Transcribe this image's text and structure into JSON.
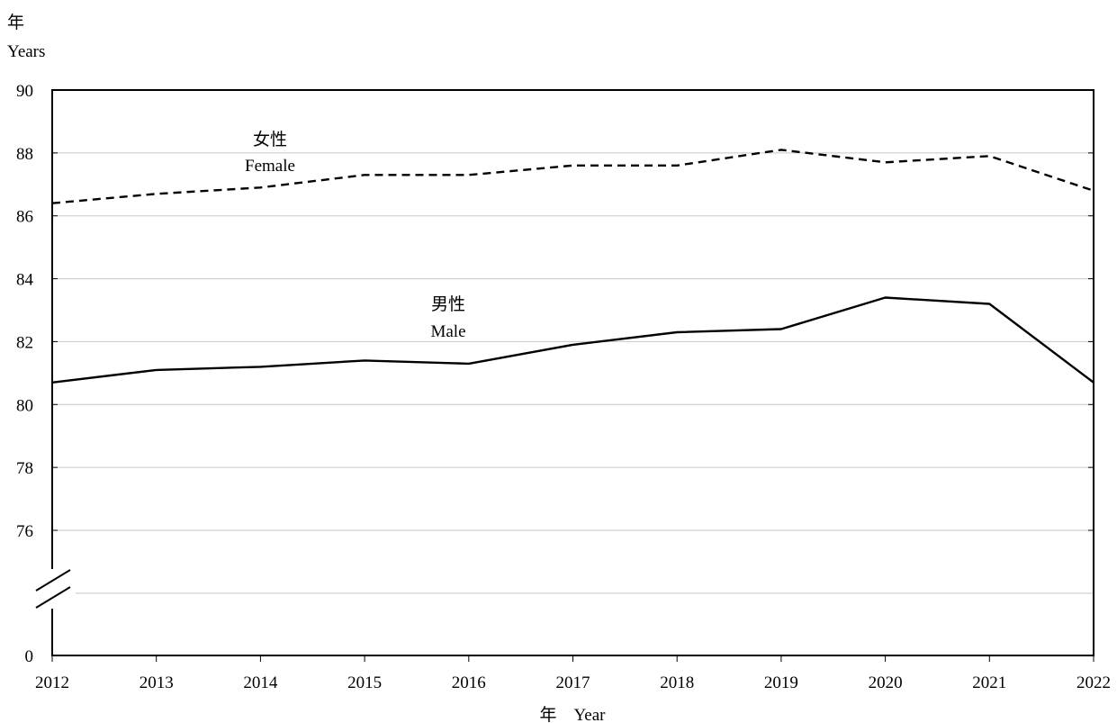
{
  "chart_data": {
    "type": "line",
    "title": "",
    "ylabel_zh": "年",
    "ylabel_en": "Years",
    "xlabel": "年　Year",
    "x": [
      "2012",
      "2013",
      "2014",
      "2015",
      "2016",
      "2017",
      "2018",
      "2019",
      "2020",
      "2021",
      "2022"
    ],
    "ylim": [
      76,
      90
    ],
    "y_axis_break": true,
    "y_ticks": [
      "90",
      "88",
      "86",
      "84",
      "82",
      "80",
      "78",
      "76",
      "0"
    ],
    "grid": true,
    "series": [
      {
        "name_zh": "女性",
        "name_en": "Female",
        "line_style": "dashed",
        "color": "#000000",
        "values": [
          86.4,
          86.7,
          86.9,
          87.3,
          87.3,
          87.6,
          87.6,
          88.1,
          87.7,
          87.9,
          86.8
        ]
      },
      {
        "name_zh": "男性",
        "name_en": "Male",
        "line_style": "solid",
        "color": "#000000",
        "values": [
          80.7,
          81.1,
          81.2,
          81.4,
          81.3,
          81.9,
          82.3,
          82.4,
          83.4,
          83.2,
          80.7
        ]
      }
    ]
  }
}
